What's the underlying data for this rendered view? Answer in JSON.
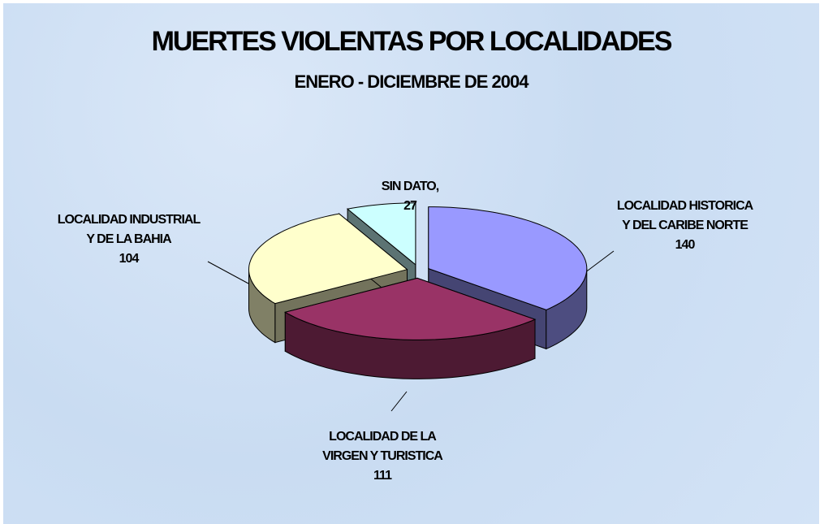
{
  "chart_data": {
    "type": "pie3d",
    "title": "MUERTES VIOLENTAS POR LOCALIDADES",
    "subtitle": "ENERO - DICIEMBRE DE 2004",
    "categories": [
      "LOCALIDAD HISTORICA Y DEL CARIBE NORTE",
      "LOCALIDAD DE LA VIRGEN Y TURISTICA",
      "LOCALIDAD INDUSTRIAL Y DE LA BAHIA",
      "SIN DATO,"
    ],
    "values": [
      140,
      111,
      104,
      27
    ],
    "colors": [
      "#9999ff",
      "#993366",
      "#ffffcc",
      "#ccffff"
    ]
  }
}
